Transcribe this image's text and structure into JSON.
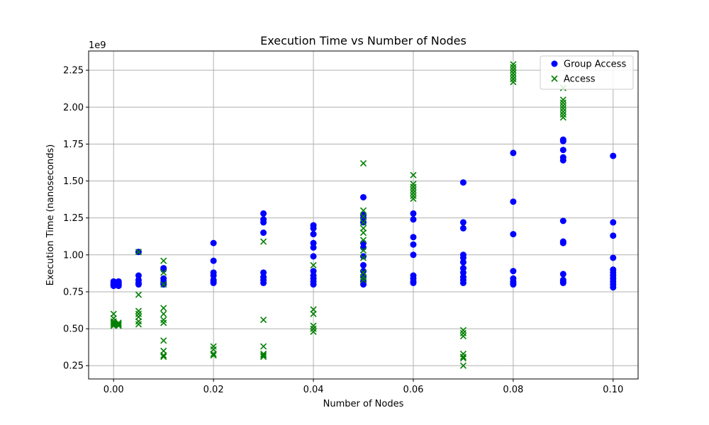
{
  "chart_data": {
    "type": "scatter",
    "title": "Execution Time vs Number of Nodes",
    "xlabel": "Number of Nodes",
    "ylabel": "Execution Time (nanoseconds)",
    "y_offset_label": "1e9",
    "xlim": [
      -0.005,
      0.105
    ],
    "ylim": [
      0.16,
      2.38
    ],
    "x_ticks": [
      "0.00",
      "0.02",
      "0.04",
      "0.06",
      "0.08",
      "0.10"
    ],
    "x_tick_values": [
      0.0,
      0.02,
      0.04,
      0.06,
      0.08,
      0.1
    ],
    "y_ticks": [
      "0.25",
      "0.50",
      "0.75",
      "1.00",
      "1.25",
      "1.50",
      "1.75",
      "2.00",
      "2.25"
    ],
    "y_tick_values": [
      0.25,
      0.5,
      0.75,
      1.0,
      1.25,
      1.5,
      1.75,
      2.0,
      2.25
    ],
    "grid": true,
    "legend_position": "top-right",
    "series": [
      {
        "name": "Group Access",
        "marker": "circle",
        "color": "#0000ff",
        "points": [
          [
            0.0,
            0.8
          ],
          [
            0.0,
            0.81
          ],
          [
            0.0,
            0.82
          ],
          [
            0.0,
            0.79
          ],
          [
            0.0,
            0.8
          ],
          [
            0.001,
            0.81
          ],
          [
            0.001,
            0.79
          ],
          [
            0.001,
            0.82
          ],
          [
            0.001,
            0.8
          ],
          [
            0.005,
            1.02
          ],
          [
            0.005,
            0.86
          ],
          [
            0.005,
            0.83
          ],
          [
            0.005,
            0.81
          ],
          [
            0.005,
            0.8
          ],
          [
            0.01,
            0.91
          ],
          [
            0.01,
            0.9
          ],
          [
            0.01,
            0.84
          ],
          [
            0.01,
            0.82
          ],
          [
            0.01,
            0.81
          ],
          [
            0.01,
            0.8
          ],
          [
            0.02,
            1.08
          ],
          [
            0.02,
            0.96
          ],
          [
            0.02,
            0.88
          ],
          [
            0.02,
            0.86
          ],
          [
            0.02,
            0.83
          ],
          [
            0.02,
            0.82
          ],
          [
            0.02,
            0.81
          ],
          [
            0.03,
            1.28
          ],
          [
            0.03,
            1.24
          ],
          [
            0.03,
            1.22
          ],
          [
            0.03,
            1.15
          ],
          [
            0.03,
            0.88
          ],
          [
            0.03,
            0.85
          ],
          [
            0.03,
            0.83
          ],
          [
            0.03,
            0.81
          ],
          [
            0.04,
            1.2
          ],
          [
            0.04,
            1.18
          ],
          [
            0.04,
            1.14
          ],
          [
            0.04,
            1.08
          ],
          [
            0.04,
            1.05
          ],
          [
            0.04,
            0.99
          ],
          [
            0.04,
            0.89
          ],
          [
            0.04,
            0.86
          ],
          [
            0.04,
            0.84
          ],
          [
            0.04,
            0.82
          ],
          [
            0.04,
            0.8
          ],
          [
            0.05,
            1.39
          ],
          [
            0.05,
            1.27
          ],
          [
            0.05,
            1.25
          ],
          [
            0.05,
            1.22
          ],
          [
            0.05,
            1.08
          ],
          [
            0.05,
            1.05
          ],
          [
            0.05,
            0.99
          ],
          [
            0.05,
            0.93
          ],
          [
            0.05,
            0.89
          ],
          [
            0.05,
            0.85
          ],
          [
            0.05,
            0.82
          ],
          [
            0.05,
            0.8
          ],
          [
            0.06,
            1.28
          ],
          [
            0.06,
            1.24
          ],
          [
            0.06,
            1.12
          ],
          [
            0.06,
            1.07
          ],
          [
            0.06,
            1.0
          ],
          [
            0.06,
            0.86
          ],
          [
            0.06,
            0.84
          ],
          [
            0.06,
            0.82
          ],
          [
            0.06,
            0.81
          ],
          [
            0.07,
            1.49
          ],
          [
            0.07,
            1.22
          ],
          [
            0.07,
            1.18
          ],
          [
            0.07,
            1.0
          ],
          [
            0.07,
            0.98
          ],
          [
            0.07,
            0.95
          ],
          [
            0.07,
            0.91
          ],
          [
            0.07,
            0.88
          ],
          [
            0.07,
            0.85
          ],
          [
            0.07,
            0.83
          ],
          [
            0.07,
            0.81
          ],
          [
            0.08,
            1.69
          ],
          [
            0.08,
            1.36
          ],
          [
            0.08,
            1.14
          ],
          [
            0.08,
            0.89
          ],
          [
            0.08,
            0.84
          ],
          [
            0.08,
            0.82
          ],
          [
            0.08,
            0.81
          ],
          [
            0.08,
            0.8
          ],
          [
            0.09,
            1.78
          ],
          [
            0.09,
            1.77
          ],
          [
            0.09,
            1.71
          ],
          [
            0.09,
            1.66
          ],
          [
            0.09,
            1.64
          ],
          [
            0.09,
            1.23
          ],
          [
            0.09,
            1.09
          ],
          [
            0.09,
            1.08
          ],
          [
            0.09,
            0.87
          ],
          [
            0.09,
            0.83
          ],
          [
            0.09,
            0.82
          ],
          [
            0.09,
            0.81
          ],
          [
            0.1,
            1.67
          ],
          [
            0.1,
            1.22
          ],
          [
            0.1,
            1.13
          ],
          [
            0.1,
            0.98
          ],
          [
            0.1,
            0.9
          ],
          [
            0.1,
            0.88
          ],
          [
            0.1,
            0.86
          ],
          [
            0.1,
            0.84
          ],
          [
            0.1,
            0.82
          ],
          [
            0.1,
            0.8
          ],
          [
            0.1,
            0.78
          ]
        ]
      },
      {
        "name": "Access",
        "marker": "x",
        "color": "#008000",
        "points": [
          [
            0.0,
            0.6
          ],
          [
            0.0,
            0.57
          ],
          [
            0.0,
            0.55
          ],
          [
            0.0,
            0.54
          ],
          [
            0.0,
            0.53
          ],
          [
            0.0,
            0.52
          ],
          [
            0.001,
            0.54
          ],
          [
            0.001,
            0.53
          ],
          [
            0.001,
            0.52
          ],
          [
            0.005,
            1.02
          ],
          [
            0.005,
            0.73
          ],
          [
            0.005,
            0.62
          ],
          [
            0.005,
            0.6
          ],
          [
            0.005,
            0.58
          ],
          [
            0.005,
            0.55
          ],
          [
            0.005,
            0.53
          ],
          [
            0.01,
            0.96
          ],
          [
            0.01,
            0.88
          ],
          [
            0.01,
            0.8
          ],
          [
            0.01,
            0.64
          ],
          [
            0.01,
            0.6
          ],
          [
            0.01,
            0.56
          ],
          [
            0.01,
            0.54
          ],
          [
            0.01,
            0.42
          ],
          [
            0.01,
            0.35
          ],
          [
            0.01,
            0.32
          ],
          [
            0.01,
            0.31
          ],
          [
            0.02,
            0.38
          ],
          [
            0.02,
            0.36
          ],
          [
            0.02,
            0.33
          ],
          [
            0.02,
            0.32
          ],
          [
            0.03,
            1.09
          ],
          [
            0.03,
            0.56
          ],
          [
            0.03,
            0.38
          ],
          [
            0.03,
            0.33
          ],
          [
            0.03,
            0.32
          ],
          [
            0.03,
            0.31
          ],
          [
            0.04,
            0.93
          ],
          [
            0.04,
            0.63
          ],
          [
            0.04,
            0.6
          ],
          [
            0.04,
            0.52
          ],
          [
            0.04,
            0.5
          ],
          [
            0.04,
            0.48
          ],
          [
            0.05,
            1.62
          ],
          [
            0.05,
            1.3
          ],
          [
            0.05,
            1.26
          ],
          [
            0.05,
            1.22
          ],
          [
            0.05,
            1.18
          ],
          [
            0.05,
            1.15
          ],
          [
            0.05,
            1.1
          ],
          [
            0.05,
            1.03
          ],
          [
            0.05,
            0.98
          ],
          [
            0.05,
            0.88
          ],
          [
            0.05,
            0.85
          ],
          [
            0.05,
            0.83
          ],
          [
            0.06,
            1.54
          ],
          [
            0.06,
            1.48
          ],
          [
            0.06,
            1.46
          ],
          [
            0.06,
            1.44
          ],
          [
            0.06,
            1.42
          ],
          [
            0.06,
            1.4
          ],
          [
            0.06,
            1.38
          ],
          [
            0.07,
            0.49
          ],
          [
            0.07,
            0.47
          ],
          [
            0.07,
            0.45
          ],
          [
            0.07,
            0.33
          ],
          [
            0.07,
            0.31
          ],
          [
            0.07,
            0.3
          ],
          [
            0.07,
            0.25
          ],
          [
            0.08,
            2.29
          ],
          [
            0.08,
            2.27
          ],
          [
            0.08,
            2.25
          ],
          [
            0.08,
            2.23
          ],
          [
            0.08,
            2.21
          ],
          [
            0.08,
            2.19
          ],
          [
            0.08,
            2.17
          ],
          [
            0.09,
            2.13
          ],
          [
            0.09,
            2.05
          ],
          [
            0.09,
            2.03
          ],
          [
            0.09,
            2.01
          ],
          [
            0.09,
            1.99
          ],
          [
            0.09,
            1.97
          ],
          [
            0.09,
            1.95
          ],
          [
            0.09,
            1.93
          ]
        ]
      }
    ]
  }
}
